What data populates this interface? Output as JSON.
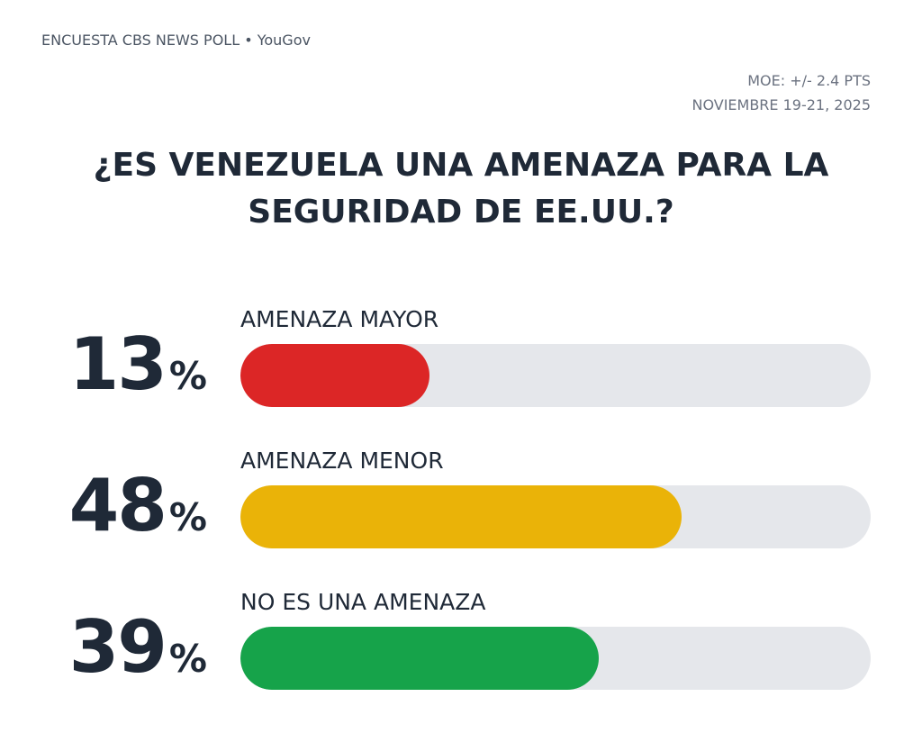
{
  "header": {
    "source": "ENCUESTA CBS NEWS POLL • YouGov",
    "moe": "MOE: +/- 2.4 PTS",
    "dates": "NOVIEMBRE 19-21, 2025"
  },
  "chart_data": {
    "type": "bar",
    "orientation": "horizontal",
    "title": "¿ES VENEZUELA UNA AMENAZA PARA LA SEGURIDAD DE EE.UU.?",
    "unit": "%",
    "categories": [
      "AMENAZA MAYOR",
      "AMENAZA MENOR",
      "NO ES UNA AMENAZA"
    ],
    "values": [
      13,
      48,
      39
    ],
    "value_labels": [
      "13",
      "48",
      "39"
    ],
    "colors": [
      "#dc2626",
      "#eab308",
      "#16a34a"
    ],
    "track_color": "#e5e7eb",
    "grid": false,
    "legend": "none"
  }
}
